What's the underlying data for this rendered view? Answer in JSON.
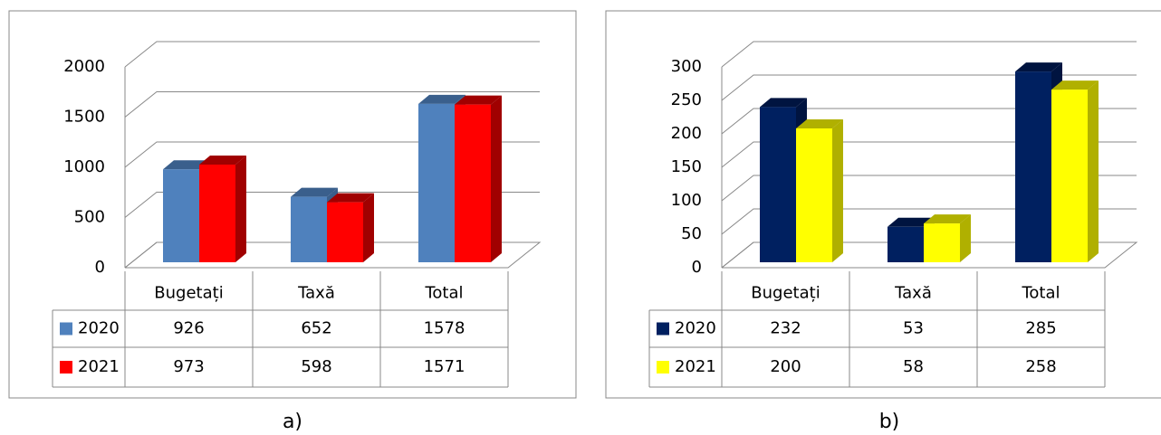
{
  "chart_data": [
    {
      "type": "bar3d",
      "caption": "a)",
      "categories": [
        "Bugetați",
        "Taxă",
        "Total"
      ],
      "series": [
        {
          "name": "2020",
          "color": "#4f81bd",
          "side": "#3a5f8c",
          "values": [
            926,
            652,
            1578
          ]
        },
        {
          "name": "2021",
          "color": "#ff0000",
          "side": "#a00000",
          "values": [
            973,
            598,
            1571
          ]
        }
      ],
      "ylim": [
        0,
        2000
      ],
      "yticks": [
        0,
        500,
        1000,
        1500,
        2000
      ],
      "grid": true
    },
    {
      "type": "bar3d",
      "caption": "b)",
      "categories": [
        "Bugetați",
        "Taxă",
        "Total"
      ],
      "series": [
        {
          "name": "2020",
          "color": "#002060",
          "side": "#001440",
          "values": [
            232,
            53,
            285
          ]
        },
        {
          "name": "2021",
          "color": "#ffff00",
          "side": "#b0b000",
          "values": [
            200,
            58,
            258
          ]
        }
      ],
      "ylim": [
        0,
        300
      ],
      "yticks": [
        0,
        50,
        100,
        150,
        200,
        250,
        300
      ],
      "grid": true
    }
  ]
}
